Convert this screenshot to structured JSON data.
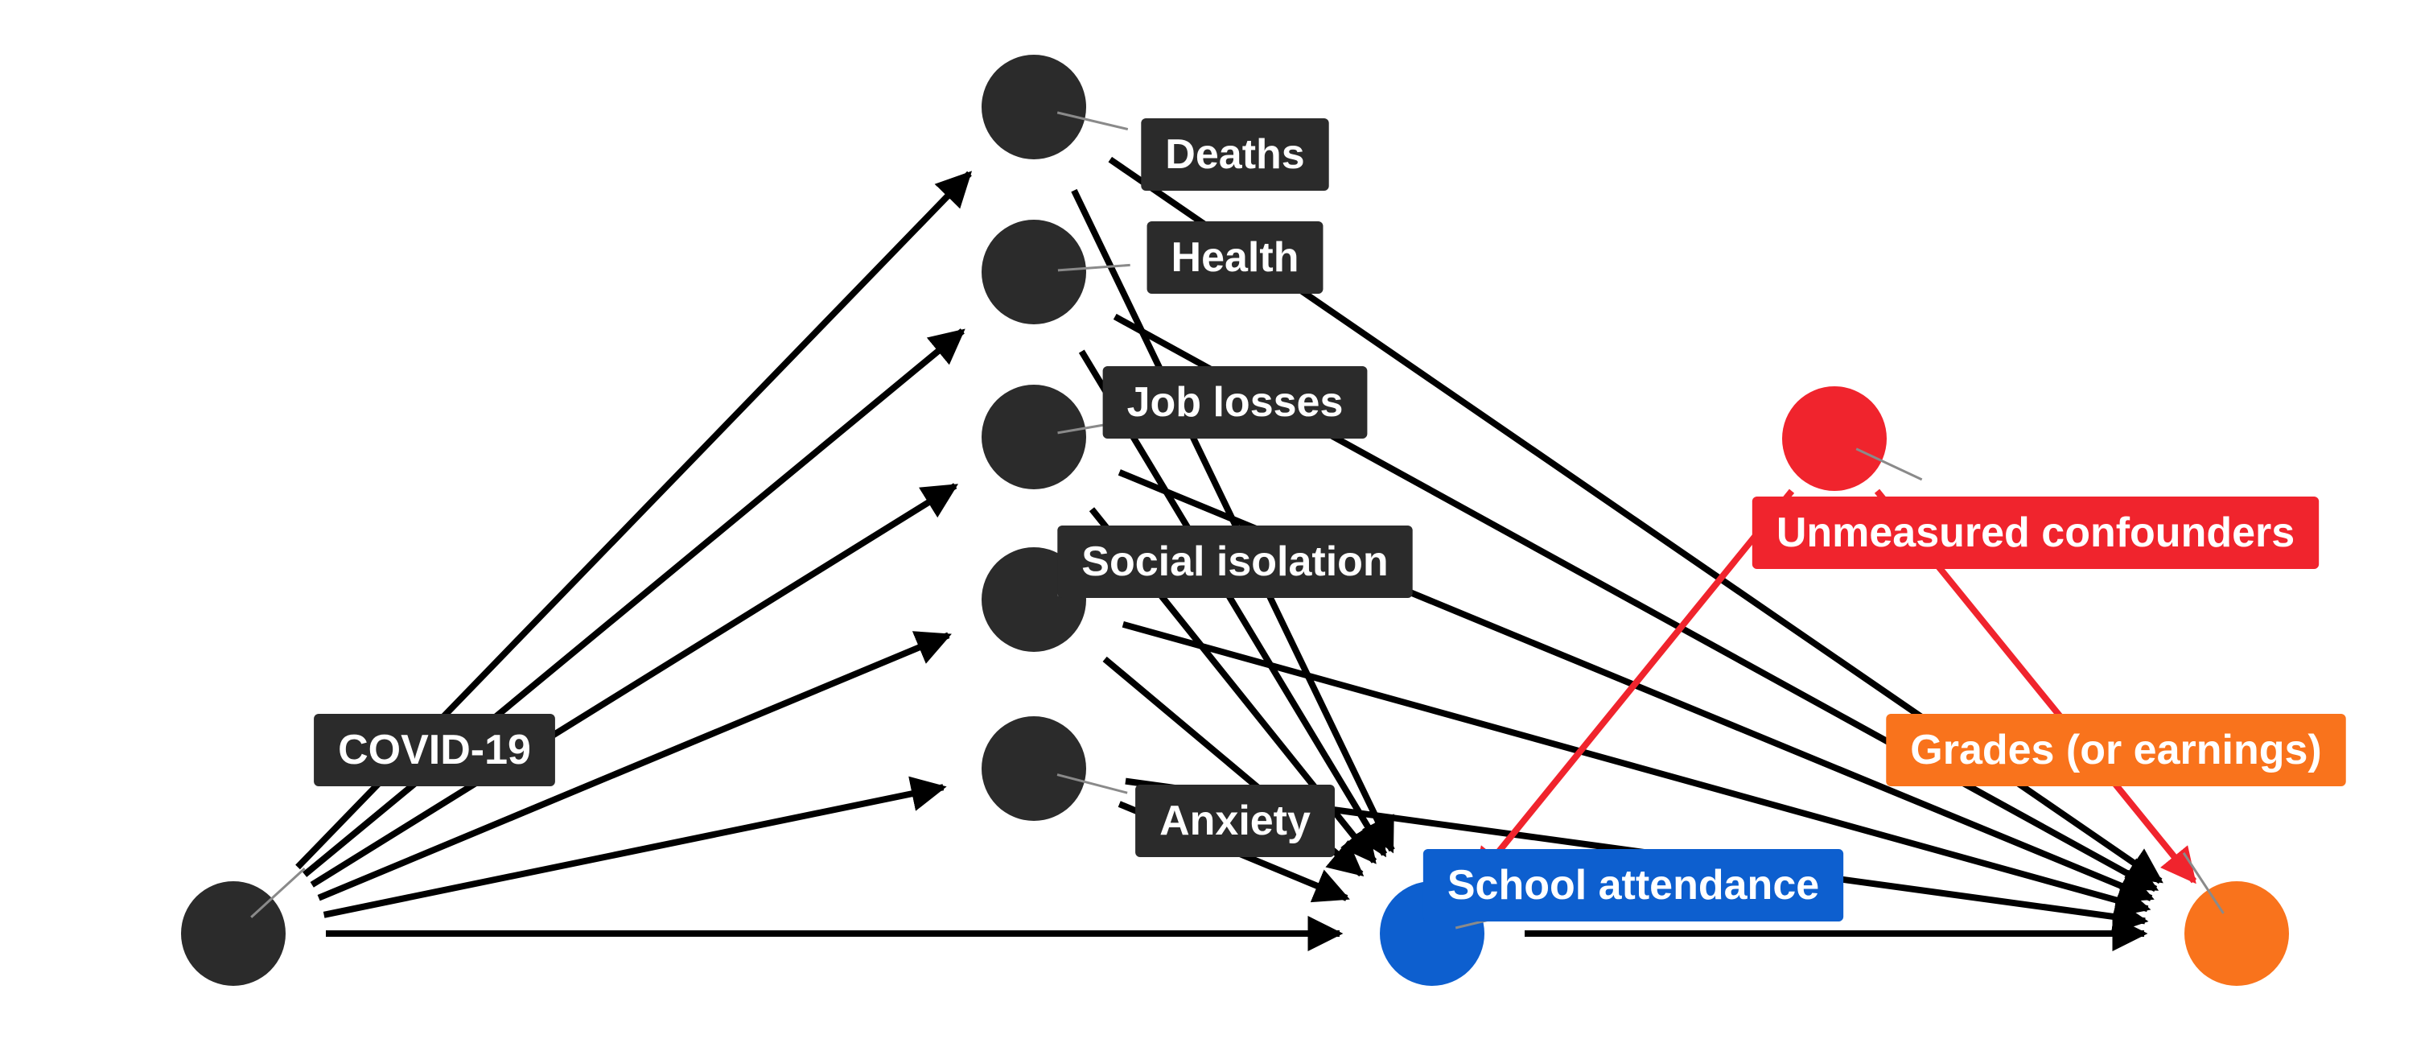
{
  "nodes": {
    "covid": {
      "label": "COVID-19",
      "color": "#2b2b2b"
    },
    "deaths": {
      "label": "Deaths",
      "color": "#2b2b2b"
    },
    "health": {
      "label": "Health",
      "color": "#2b2b2b"
    },
    "job_losses": {
      "label": "Job losses",
      "color": "#2b2b2b"
    },
    "social_isolation": {
      "label": "Social isolation",
      "color": "#2b2b2b"
    },
    "anxiety": {
      "label": "Anxiety",
      "color": "#2b2b2b"
    },
    "school_attendance": {
      "label": "School attendance",
      "color": "#0d5fcf"
    },
    "unmeasured_confounders": {
      "label": "Unmeasured confounders",
      "color": "#f0242d"
    },
    "grades": {
      "label": "Grades (or earnings)",
      "color": "#f9731c"
    }
  },
  "edges": [
    {
      "from": "covid",
      "to": "deaths"
    },
    {
      "from": "covid",
      "to": "health"
    },
    {
      "from": "covid",
      "to": "job_losses"
    },
    {
      "from": "covid",
      "to": "social_isolation"
    },
    {
      "from": "covid",
      "to": "anxiety"
    },
    {
      "from": "covid",
      "to": "school_attendance"
    },
    {
      "from": "deaths",
      "to": "school_attendance"
    },
    {
      "from": "health",
      "to": "school_attendance"
    },
    {
      "from": "job_losses",
      "to": "school_attendance"
    },
    {
      "from": "social_isolation",
      "to": "school_attendance"
    },
    {
      "from": "anxiety",
      "to": "school_attendance"
    },
    {
      "from": "deaths",
      "to": "grades"
    },
    {
      "from": "health",
      "to": "grades"
    },
    {
      "from": "job_losses",
      "to": "grades"
    },
    {
      "from": "social_isolation",
      "to": "grades"
    },
    {
      "from": "anxiety",
      "to": "grades"
    },
    {
      "from": "school_attendance",
      "to": "grades"
    },
    {
      "from": "unmeasured_confounders",
      "to": "school_attendance",
      "confounder": true
    },
    {
      "from": "unmeasured_confounders",
      "to": "grades",
      "confounder": true
    }
  ]
}
